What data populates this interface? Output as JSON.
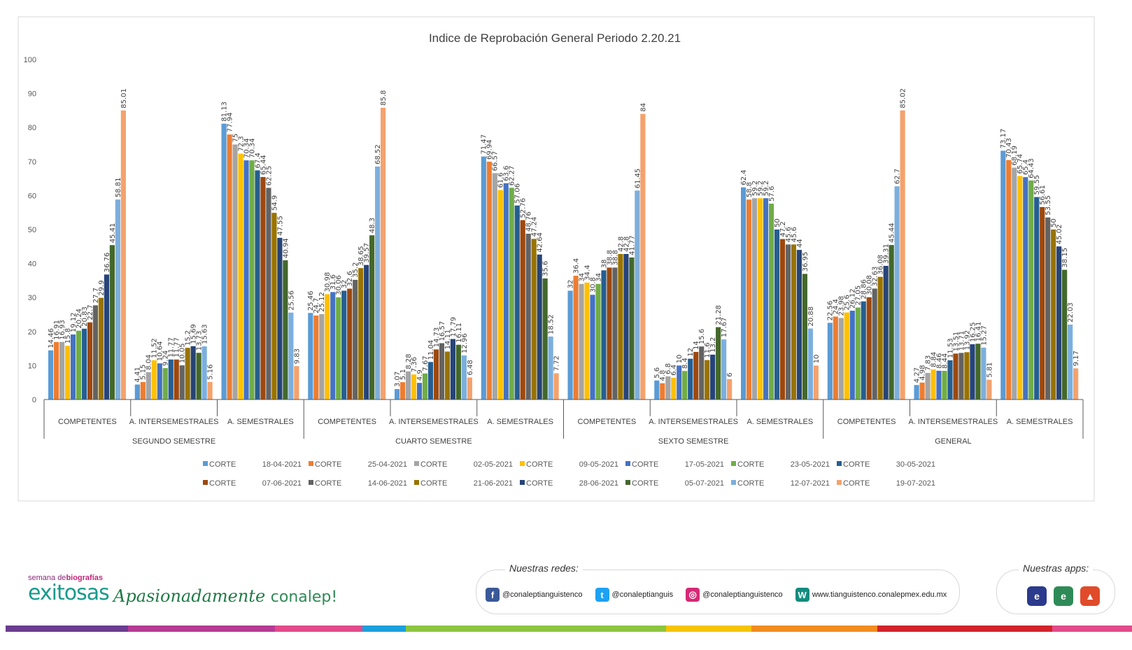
{
  "chart_data": {
    "type": "bar",
    "title": "Indice de Reprobación General Periodo 2.20.21",
    "xlabel": "",
    "ylabel": "",
    "ylim": [
      0,
      100
    ],
    "yticks": [
      "0",
      "10",
      "20",
      "30",
      "40",
      "50",
      "60",
      "70",
      "80",
      "90",
      "100"
    ],
    "grid": false,
    "legend_position": "bottom",
    "groups": [
      {
        "label": "SEGUNDO SEMESTRE",
        "categories": [
          "COMPETENTES",
          "A. INTERSEMESTRALES",
          "A. SEMESTRALES"
        ]
      },
      {
        "label": "CUARTO SEMESTRE",
        "categories": [
          "COMPETENTES",
          "A. INTERSEMESTRALES",
          "A. SEMESTRALES"
        ]
      },
      {
        "label": "SEXTO SEMESTRE",
        "categories": [
          "COMPETENTES",
          "A. INTERSEMESTRALES",
          "A. SEMESTRALES"
        ]
      },
      {
        "label": "GENERAL",
        "categories": [
          "COMPETENTES",
          "A. INTERSEMESTRALES",
          "A. SEMESTRALES"
        ]
      }
    ],
    "series": [
      {
        "prefix": "CORTE",
        "date": "18-04-2021",
        "color": "#5b9bd5",
        "values": [
          14.46,
          4.41,
          81.13,
          25.46,
          3.07,
          71.47,
          32,
          5.6,
          62.4,
          22.56,
          4.27,
          73.17
        ]
      },
      {
        "prefix": "CORTE",
        "date": "25-04-2021",
        "color": "#ed7d31",
        "values": [
          16.91,
          5.15,
          77.94,
          24.7,
          5.1,
          69.94,
          36.4,
          4.8,
          58.8,
          24.4,
          4.98,
          70.43
        ]
      },
      {
        "prefix": "CORTE",
        "date": "02-05-2021",
        "color": "#a5a5a5",
        "values": [
          16.93,
          8.04,
          75,
          25.12,
          8.28,
          66.57,
          34,
          6.8,
          59.2,
          23.98,
          7.83,
          68.19
        ]
      },
      {
        "prefix": "CORTE",
        "date": "09-05-2021",
        "color": "#ffc000",
        "values": [
          15.8,
          11.52,
          72.3,
          30.98,
          7.36,
          61.6,
          34.4,
          6.4,
          59.2,
          25.6,
          8.84,
          65.74
        ]
      },
      {
        "prefix": "CORTE",
        "date": "17-05-2021",
        "color": "#4472c4",
        "values": [
          19.12,
          10.64,
          70.34,
          31.6,
          4.9,
          63.6,
          30.8,
          10,
          59.2,
          26.12,
          8.46,
          65.4
        ]
      },
      {
        "prefix": "CORTE",
        "date": "23-05-2021",
        "color": "#70ad47",
        "values": [
          20.24,
          9.24,
          70.34,
          30.06,
          7.67,
          62.27,
          34,
          8.4,
          57.6,
          27.05,
          8.44,
          64.43
        ]
      },
      {
        "prefix": "CORTE",
        "date": "30-05-2021",
        "color": "#255e91",
        "values": [
          20.83,
          11.77,
          67.4,
          32,
          11.04,
          57.06,
          38,
          12,
          50,
          28.86,
          11.53,
          59.55
        ]
      },
      {
        "prefix": "CORTE",
        "date": "07-06-2021",
        "color": "#9e480e",
        "values": [
          22.7,
          11.77,
          65.44,
          32.6,
          14.73,
          52.76,
          38.8,
          14,
          47.2,
          30.08,
          13.51,
          56.61
        ]
      },
      {
        "prefix": "CORTE",
        "date": "14-06-2021",
        "color": "#636363",
        "values": [
          27.7,
          10.05,
          62.25,
          35.2,
          16.57,
          48.76,
          38.8,
          15.6,
          45.6,
          32.63,
          13.71,
          53.55
        ]
      },
      {
        "prefix": "CORTE",
        "date": "21-06-2021",
        "color": "#997300",
        "values": [
          29.9,
          15.2,
          54.9,
          38.65,
          14.11,
          47.24,
          42.8,
          11.6,
          45.6,
          36.08,
          13.92,
          50
        ]
      },
      {
        "prefix": "CORTE",
        "date": "28-06-2021",
        "color": "#264478",
        "values": [
          36.76,
          15.69,
          47.55,
          39.57,
          17.79,
          42.64,
          42.8,
          13.2,
          44,
          39.31,
          16.25,
          45.02
        ]
      },
      {
        "prefix": "CORTE",
        "date": "05-07-2021",
        "color": "#43682b",
        "values": [
          45.41,
          13.73,
          40.94,
          48.3,
          16.11,
          35.6,
          41.77,
          21.28,
          36.95,
          45.44,
          16.41,
          38.15
        ]
      },
      {
        "prefix": "CORTE",
        "date": "12-07-2021",
        "color": "#7cafdd",
        "values": [
          58.81,
          15.63,
          25.56,
          68.52,
          12.96,
          18.52,
          61.45,
          17.67,
          20.88,
          62.7,
          15.27,
          22.03
        ]
      },
      {
        "prefix": "CORTE",
        "date": "19-07-2021",
        "color": "#f4a26d",
        "values": [
          85.01,
          5.16,
          9.83,
          85.8,
          6.48,
          7.72,
          84,
          6,
          10,
          85.02,
          5.81,
          9.17
        ]
      }
    ]
  },
  "footer": {
    "brand_small_prefix": "semana de",
    "brand_small_bold": "biografías",
    "brand_big": "exitosas",
    "tagline_italic": "Apasionadamente",
    "tagline_light": "conalep!",
    "social_title": "Nuestras redes:",
    "social": [
      {
        "icon": "facebook-icon",
        "glyph": "f",
        "color": "#3b5998",
        "text": "@conaleptianguistenco"
      },
      {
        "icon": "twitter-icon",
        "glyph": "t",
        "color": "#1da1f2",
        "text": "@conaleptianguis"
      },
      {
        "icon": "instagram-icon",
        "glyph": "◎",
        "color": "#d62976",
        "text": "@conaleptianguistenco"
      },
      {
        "icon": "website-icon",
        "glyph": "W",
        "color": "#128c7e",
        "text": "www.tianguistenco.conalepmex.edu.mx"
      }
    ],
    "apps_title": "Nuestras apps:",
    "apps": [
      {
        "icon": "app-icon-1",
        "glyph": "e",
        "color": "#2b3a8c"
      },
      {
        "icon": "app-icon-2",
        "glyph": "e",
        "color": "#2e8b57"
      },
      {
        "icon": "app-icon-3",
        "glyph": "▲",
        "color": "#e04b2a"
      }
    ],
    "strip_colors": [
      "#6b3c8f",
      "#b63a93",
      "#e24a8a",
      "#1aa0dc",
      "#8cc63f",
      "#f6c400",
      "#f28c1e",
      "#d2232a",
      "#e24a8a"
    ]
  }
}
